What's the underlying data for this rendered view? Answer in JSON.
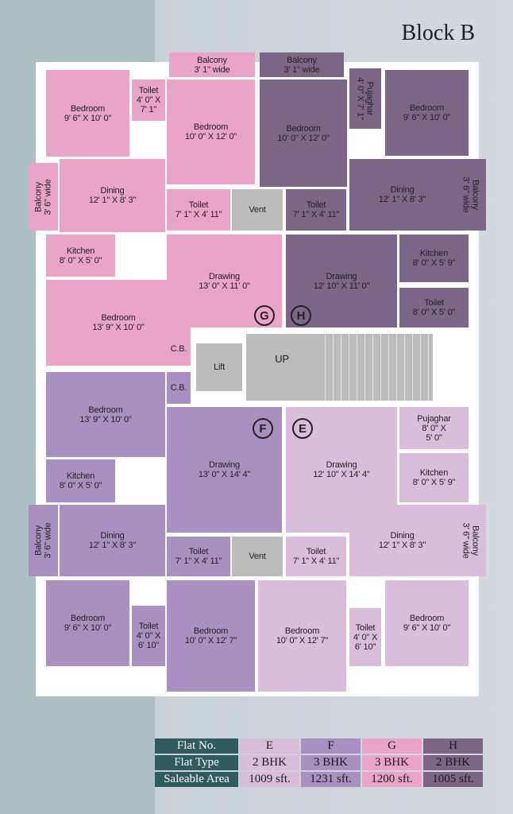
{
  "title": "Block B",
  "colors": {
    "E": "#d9bdda",
    "F": "#a890c0",
    "G": "#e9a4c8",
    "H": "#7b6688",
    "table_header": "#2f5b5e"
  },
  "flat_labels": {
    "G": "G",
    "H": "H",
    "F": "F",
    "E": "E"
  },
  "stairs_label": "UP",
  "rooms": {
    "g_balcony": [
      "Balcony",
      "3' 1\" wide"
    ],
    "g_bed1": [
      "Bedroom",
      "9' 6\" X 10' 0\""
    ],
    "g_toilet1": [
      "Toilet",
      "4' 0\" X",
      "7' 1\""
    ],
    "g_bed2": [
      "Bedroom",
      "10' 0\" X 12' 0\""
    ],
    "g_balcony2": [
      "Balcony",
      "3' 6\" wide"
    ],
    "g_dining": [
      "Dining",
      "12' 1\" X 8' 3\""
    ],
    "g_toilet2": [
      "Toilet",
      "7' 1\" X 4' 11\""
    ],
    "vent1": [
      "Vent"
    ],
    "g_kitchen": [
      "Kitchen",
      "8' 0\" X 5' 0\""
    ],
    "g_bed3": [
      "Bedroom",
      "13' 9\" X 10' 0\""
    ],
    "g_drawing": [
      "Drawing",
      "13' 0\" X 11' 0\""
    ],
    "cb1": [
      "C.B."
    ],
    "cb2": [
      "C.B."
    ],
    "lift": [
      "Lift"
    ],
    "h_balcony": [
      "Balcony",
      "3' 1\" wide"
    ],
    "h_bed1": [
      "Bedroom",
      "10' 0\" X 12' 0\""
    ],
    "h_puja": [
      "Pujaghar",
      "4' 0\" X 7' 1\""
    ],
    "h_bed2": [
      "Bedroom",
      "9' 6\" X 10' 0\""
    ],
    "h_dining": [
      "Dining",
      "12' 1\" X 8' 3\""
    ],
    "h_balcony2": [
      "Balcony",
      "3' 6\" wide"
    ],
    "h_toilet1": [
      "Toilet",
      "7' 1\" X 4' 11\""
    ],
    "h_drawing": [
      "Drawing",
      "12' 10\" X 11' 0\""
    ],
    "h_kitchen": [
      "Kitchen",
      "8' 0\" X 5' 9\""
    ],
    "h_toilet2": [
      "Toilet",
      "8' 0\" X 5' 0\""
    ],
    "f_bed1": [
      "Bedroom",
      "13' 9\" X 10' 0\""
    ],
    "f_drawing": [
      "Drawing",
      "13' 0\" X 14' 4\""
    ],
    "f_kitchen": [
      "Kitchen",
      "8' 0\" X 5' 0\""
    ],
    "f_balcony": [
      "Balcony",
      "3' 6\" wide"
    ],
    "f_dining": [
      "Dining",
      "12' 1\" X 8' 3\""
    ],
    "f_toilet1": [
      "Toilet",
      "7' 1\" X 4' 11\""
    ],
    "vent2": [
      "Vent"
    ],
    "f_bed2": [
      "Bedroom",
      "9' 6\" X 10' 0\""
    ],
    "f_toilet2": [
      "Toilet",
      "4' 0\" X",
      "6' 10\""
    ],
    "f_bed3": [
      "Bedroom",
      "10' 0\" X 12' 7\""
    ],
    "e_drawing": [
      "Drawing",
      "12' 10\" X 14' 4\""
    ],
    "e_puja": [
      "Pujaghar",
      "8' 0\" X",
      "5' 0\""
    ],
    "e_kitchen": [
      "Kitchen",
      "8' 0\" X 5' 9\""
    ],
    "e_dining": [
      "Dining",
      "12' 1\" X 8' 3\""
    ],
    "e_balcony": [
      "Balcony",
      "3' 6\" wide"
    ],
    "e_toilet1": [
      "Toilet",
      "7' 1\" X 4' 11\""
    ],
    "e_bed1": [
      "Bedroom",
      "10' 0\" X 12' 7\""
    ],
    "e_toilet2": [
      "Toilet",
      "4' 0\" X",
      "6' 10\""
    ],
    "e_bed2": [
      "Bedroom",
      "9' 6\" X 10' 0\""
    ]
  },
  "table": {
    "headers": [
      "Flat No.",
      "Flat Type",
      "Saleable Area"
    ],
    "flats": [
      {
        "no": "E",
        "type": "2 BHK",
        "area": "1009 sft."
      },
      {
        "no": "F",
        "type": "3 BHK",
        "area": "1231 sft."
      },
      {
        "no": "G",
        "type": "3 BHK",
        "area": "1200 sft."
      },
      {
        "no": "H",
        "type": "2 BHK",
        "area": "1005 sft."
      }
    ]
  }
}
